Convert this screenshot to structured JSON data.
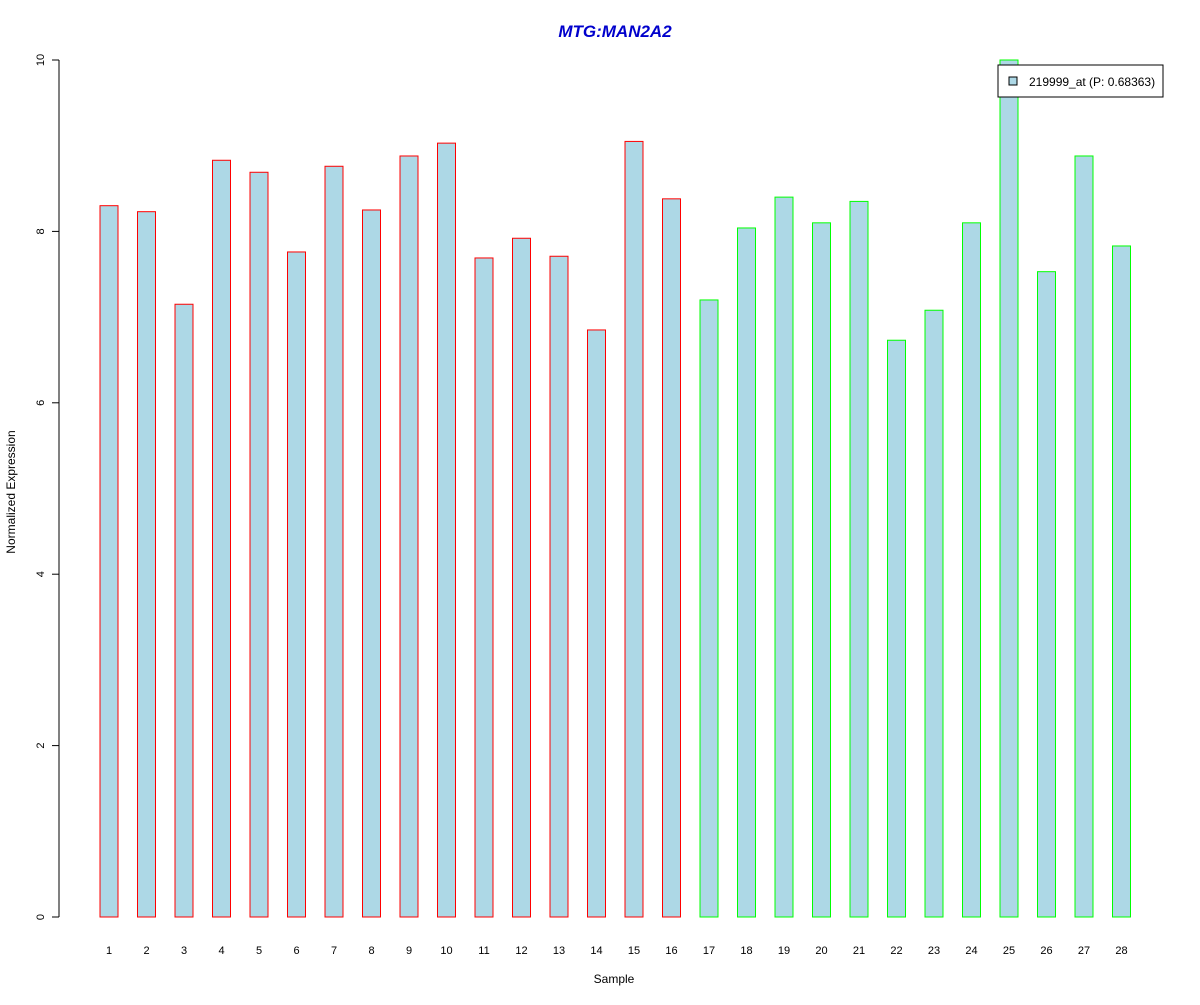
{
  "chart_data": {
    "type": "bar",
    "title": "MTG:MAN2A2",
    "xlabel": "Sample",
    "ylabel": "Normalized Expression",
    "ylim": [
      0,
      10
    ],
    "yticks": [
      0,
      2,
      4,
      6,
      8,
      10
    ],
    "grid": false,
    "categories": [
      "1",
      "2",
      "3",
      "4",
      "5",
      "6",
      "7",
      "8",
      "9",
      "10",
      "11",
      "12",
      "13",
      "14",
      "15",
      "16",
      "17",
      "18",
      "19",
      "20",
      "21",
      "22",
      "23",
      "24",
      "25",
      "26",
      "27",
      "28"
    ],
    "values": [
      8.3,
      8.23,
      7.15,
      8.83,
      8.69,
      7.76,
      8.76,
      8.25,
      8.88,
      9.03,
      7.69,
      7.92,
      7.71,
      6.85,
      9.05,
      8.38,
      7.2,
      8.04,
      8.4,
      8.1,
      8.35,
      6.73,
      7.08,
      8.1,
      10.0,
      7.53,
      8.88,
      7.83
    ],
    "group_border_colors": [
      "#ff0000",
      "#ff0000",
      "#ff0000",
      "#ff0000",
      "#ff0000",
      "#ff0000",
      "#ff0000",
      "#ff0000",
      "#ff0000",
      "#ff0000",
      "#ff0000",
      "#ff0000",
      "#ff0000",
      "#ff0000",
      "#ff0000",
      "#ff0000",
      "#00ff00",
      "#00ff00",
      "#00ff00",
      "#00ff00",
      "#00ff00",
      "#00ff00",
      "#00ff00",
      "#00ff00",
      "#00ff00",
      "#00ff00",
      "#00ff00",
      "#00ff00"
    ],
    "bar_fill": "#add8e6",
    "title_color": "#0000cc",
    "legend": {
      "label": "219999_at (P: 0.68363)",
      "placement": "top-right"
    }
  }
}
